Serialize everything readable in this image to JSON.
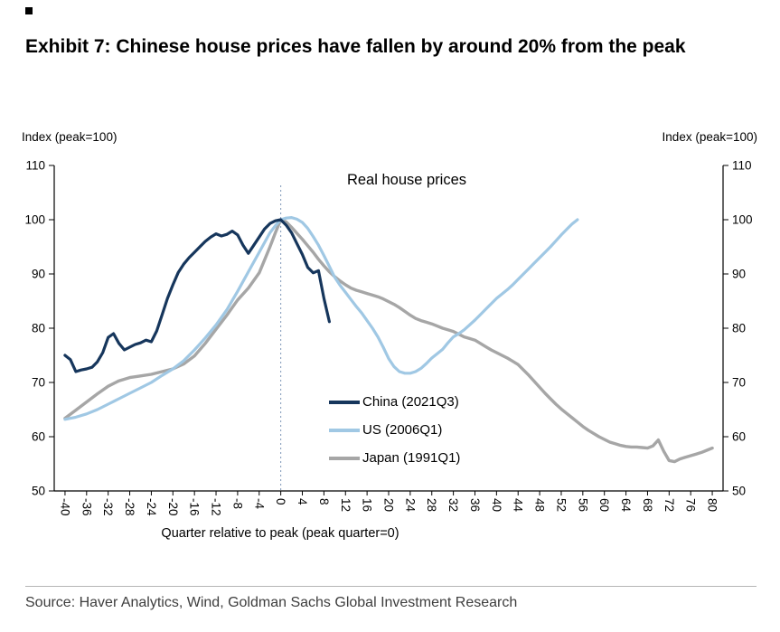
{
  "header": {
    "title": "Exhibit 7: Chinese house prices have fallen by around 20% from the peak"
  },
  "chart": {
    "left_axis_label": "Index (peak=100)",
    "right_axis_label": "Index (peak=100)",
    "inner_title": "Real house prices",
    "x_axis_label": "Quarter relative to peak (peak quarter=0)"
  },
  "footer": {
    "source": "Source: Haver Analytics, Wind, Goldman Sachs Global Investment Research"
  },
  "chart_data": {
    "type": "line",
    "title": "Real house prices",
    "xlabel": "Quarter relative to peak (peak quarter=0)",
    "ylabel": "Index (peak=100)",
    "xlim": [
      -42,
      82
    ],
    "ylim": [
      50,
      110
    ],
    "x_ticks": [
      -40,
      -36,
      -32,
      -28,
      -24,
      -20,
      -16,
      -12,
      -8,
      -4,
      0,
      4,
      8,
      12,
      16,
      20,
      24,
      28,
      32,
      36,
      40,
      44,
      48,
      52,
      56,
      60,
      64,
      68,
      72,
      76,
      80
    ],
    "y_ticks": [
      50,
      60,
      70,
      80,
      90,
      100,
      110
    ],
    "grid": false,
    "legend_position": "inside-center",
    "reference_line": {
      "x": 0,
      "style": "dotted",
      "color": "#7e96b8"
    },
    "axis_color": "#000000",
    "series": [
      {
        "name": "Japan (1991Q1)",
        "color": "#a6a6a6",
        "width": 3.4,
        "points": [
          [
            -40,
            63.4
          ],
          [
            -38,
            64.9
          ],
          [
            -36,
            66.4
          ],
          [
            -34,
            67.9
          ],
          [
            -32,
            69.3
          ],
          [
            -30,
            70.3
          ],
          [
            -28,
            70.9
          ],
          [
            -26,
            71.2
          ],
          [
            -24,
            71.5
          ],
          [
            -22,
            72
          ],
          [
            -20,
            72.5
          ],
          [
            -18,
            73.4
          ],
          [
            -16,
            74.9
          ],
          [
            -14,
            77.2
          ],
          [
            -12,
            79.8
          ],
          [
            -10,
            82.4
          ],
          [
            -8,
            85.2
          ],
          [
            -6,
            87.4
          ],
          [
            -4,
            90.2
          ],
          [
            -2,
            95
          ],
          [
            -1,
            97.6
          ],
          [
            0,
            100
          ],
          [
            1,
            99.6
          ],
          [
            2,
            98.6
          ],
          [
            3,
            97.5
          ],
          [
            4,
            96.4
          ],
          [
            5,
            95.2
          ],
          [
            6,
            94
          ],
          [
            7,
            92.7
          ],
          [
            8,
            91.5
          ],
          [
            9,
            90.4
          ],
          [
            10,
            89.5
          ],
          [
            11,
            88.7
          ],
          [
            12,
            88
          ],
          [
            13,
            87.4
          ],
          [
            14,
            87
          ],
          [
            15,
            86.7
          ],
          [
            16,
            86.4
          ],
          [
            17,
            86.1
          ],
          [
            18,
            85.8
          ],
          [
            19,
            85.4
          ],
          [
            20,
            84.9
          ],
          [
            21,
            84.4
          ],
          [
            22,
            83.8
          ],
          [
            23,
            83.1
          ],
          [
            24,
            82.4
          ],
          [
            25,
            81.8
          ],
          [
            26,
            81.4
          ],
          [
            27,
            81.1
          ],
          [
            28,
            80.8
          ],
          [
            29,
            80.4
          ],
          [
            30,
            80
          ],
          [
            31,
            79.7
          ],
          [
            32,
            79.4
          ],
          [
            33,
            78.9
          ],
          [
            34,
            78.4
          ],
          [
            35,
            78.1
          ],
          [
            36,
            77.8
          ],
          [
            37,
            77.2
          ],
          [
            38,
            76.6
          ],
          [
            39,
            76
          ],
          [
            40,
            75.5
          ],
          [
            41,
            75
          ],
          [
            42,
            74.5
          ],
          [
            43,
            73.9
          ],
          [
            44,
            73.3
          ],
          [
            45,
            72.3
          ],
          [
            46,
            71.3
          ],
          [
            47,
            70.2
          ],
          [
            48,
            69.1
          ],
          [
            49,
            68
          ],
          [
            50,
            67
          ],
          [
            51,
            66
          ],
          [
            52,
            65.1
          ],
          [
            53,
            64.3
          ],
          [
            54,
            63.5
          ],
          [
            55,
            62.7
          ],
          [
            56,
            61.9
          ],
          [
            57,
            61.2
          ],
          [
            58,
            60.6
          ],
          [
            59,
            60
          ],
          [
            60,
            59.5
          ],
          [
            61,
            59
          ],
          [
            62,
            58.7
          ],
          [
            63,
            58.4
          ],
          [
            64,
            58.2
          ],
          [
            65,
            58.1
          ],
          [
            66,
            58.1
          ],
          [
            67,
            58
          ],
          [
            68,
            57.9
          ],
          [
            69,
            58.3
          ],
          [
            70,
            59.4
          ],
          [
            71,
            57.3
          ],
          [
            72,
            55.6
          ],
          [
            73,
            55.4
          ],
          [
            74,
            55.9
          ],
          [
            75,
            56.2
          ],
          [
            76,
            56.5
          ],
          [
            77,
            56.8
          ],
          [
            78,
            57.1
          ],
          [
            79,
            57.5
          ],
          [
            80,
            57.9
          ]
        ]
      },
      {
        "name": "US (2006Q1)",
        "color": "#a0c8e4",
        "width": 3.2,
        "points": [
          [
            -40,
            63.2
          ],
          [
            -38,
            63.6
          ],
          [
            -36,
            64.2
          ],
          [
            -34,
            65
          ],
          [
            -32,
            66
          ],
          [
            -30,
            67
          ],
          [
            -28,
            68
          ],
          [
            -26,
            69
          ],
          [
            -24,
            70
          ],
          [
            -22,
            71.3
          ],
          [
            -20,
            72.5
          ],
          [
            -18,
            74
          ],
          [
            -16,
            76
          ],
          [
            -14,
            78.2
          ],
          [
            -12,
            80.6
          ],
          [
            -10,
            83.4
          ],
          [
            -8,
            86.8
          ],
          [
            -6,
            90.4
          ],
          [
            -4,
            94
          ],
          [
            -2,
            97.6
          ],
          [
            -1,
            98.9
          ],
          [
            0,
            100
          ],
          [
            1,
            100.3
          ],
          [
            2,
            100.4
          ],
          [
            3,
            100.1
          ],
          [
            4,
            99.5
          ],
          [
            5,
            98.4
          ],
          [
            6,
            96.9
          ],
          [
            7,
            95.3
          ],
          [
            8,
            93.4
          ],
          [
            9,
            91.4
          ],
          [
            10,
            89.4
          ],
          [
            11,
            87.9
          ],
          [
            12,
            86.6
          ],
          [
            13,
            85.3
          ],
          [
            14,
            84
          ],
          [
            15,
            82.8
          ],
          [
            16,
            81.4
          ],
          [
            17,
            80
          ],
          [
            18,
            78.4
          ],
          [
            19,
            76.5
          ],
          [
            20,
            74.4
          ],
          [
            21,
            72.9
          ],
          [
            22,
            72
          ],
          [
            23,
            71.7
          ],
          [
            24,
            71.7
          ],
          [
            25,
            72
          ],
          [
            26,
            72.6
          ],
          [
            27,
            73.5
          ],
          [
            28,
            74.5
          ],
          [
            29,
            75.3
          ],
          [
            30,
            76.1
          ],
          [
            31,
            77.3
          ],
          [
            32,
            78.4
          ],
          [
            33,
            79
          ],
          [
            34,
            79.7
          ],
          [
            35,
            80.6
          ],
          [
            36,
            81.5
          ],
          [
            37,
            82.5
          ],
          [
            38,
            83.5
          ],
          [
            39,
            84.5
          ],
          [
            40,
            85.5
          ],
          [
            41,
            86.3
          ],
          [
            42,
            87.1
          ],
          [
            43,
            88
          ],
          [
            44,
            89
          ],
          [
            45,
            90
          ],
          [
            46,
            91
          ],
          [
            47,
            92
          ],
          [
            48,
            93
          ],
          [
            49,
            94
          ],
          [
            50,
            95
          ],
          [
            51,
            96.1
          ],
          [
            52,
            97.2
          ],
          [
            53,
            98.2
          ],
          [
            54,
            99.2
          ],
          [
            55,
            100
          ]
        ]
      },
      {
        "name": "China (2021Q3)",
        "color": "#16365c",
        "width": 3.2,
        "points": [
          [
            -40,
            75
          ],
          [
            -39,
            74.2
          ],
          [
            -38,
            72
          ],
          [
            -37,
            72.3
          ],
          [
            -36,
            72.5
          ],
          [
            -35,
            72.8
          ],
          [
            -34,
            73.8
          ],
          [
            -33,
            75.5
          ],
          [
            -32,
            78.3
          ],
          [
            -31,
            79
          ],
          [
            -30,
            77.2
          ],
          [
            -29,
            76
          ],
          [
            -28,
            76.5
          ],
          [
            -27,
            77
          ],
          [
            -26,
            77.3
          ],
          [
            -25,
            77.8
          ],
          [
            -24,
            77.5
          ],
          [
            -23,
            79.5
          ],
          [
            -22,
            82.5
          ],
          [
            -21,
            85.5
          ],
          [
            -20,
            88
          ],
          [
            -19,
            90.3
          ],
          [
            -18,
            91.8
          ],
          [
            -17,
            93
          ],
          [
            -16,
            94
          ],
          [
            -15,
            95
          ],
          [
            -14,
            96
          ],
          [
            -13,
            96.8
          ],
          [
            -12,
            97.4
          ],
          [
            -11,
            97
          ],
          [
            -10,
            97.3
          ],
          [
            -9,
            97.9
          ],
          [
            -8,
            97.2
          ],
          [
            -7,
            95.3
          ],
          [
            -6,
            93.8
          ],
          [
            -5,
            95.3
          ],
          [
            -4,
            96.8
          ],
          [
            -3,
            98.3
          ],
          [
            -2,
            99.3
          ],
          [
            -1,
            99.8
          ],
          [
            0,
            100
          ],
          [
            1,
            99
          ],
          [
            2,
            97.6
          ],
          [
            3,
            95.6
          ],
          [
            4,
            93.6
          ],
          [
            5,
            91.2
          ],
          [
            6,
            90.2
          ],
          [
            7,
            90.6
          ],
          [
            8,
            85.5
          ],
          [
            9,
            81.2
          ]
        ]
      }
    ],
    "legend_order": [
      "China (2021Q3)",
      "US (2006Q1)",
      "Japan (1991Q1)"
    ]
  }
}
